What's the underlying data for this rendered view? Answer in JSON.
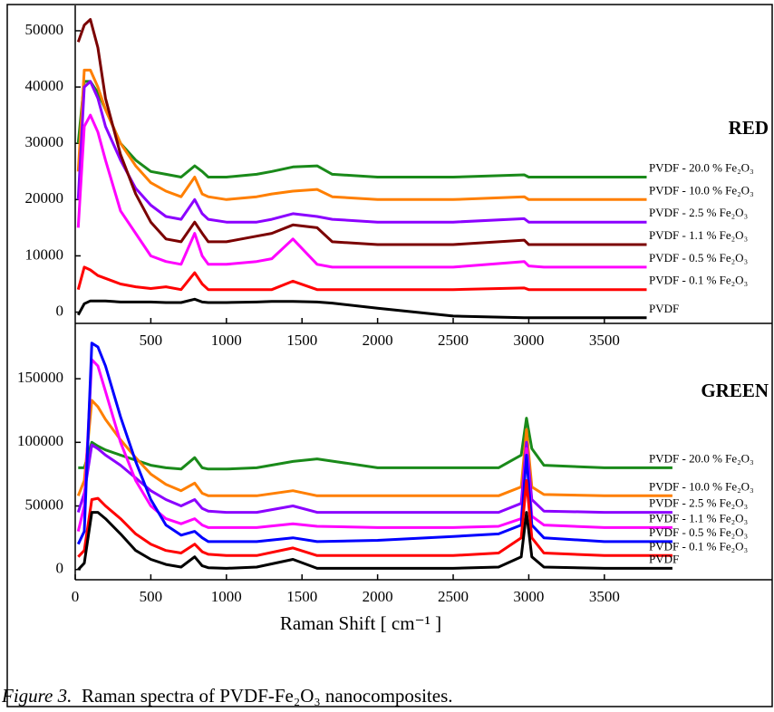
{
  "chart_data": [
    {
      "type": "line",
      "title": "RED",
      "title_color": "#ff0000",
      "x": [
        20,
        60,
        100,
        150,
        200,
        300,
        400,
        500,
        600,
        700,
        790,
        840,
        880,
        1000,
        1200,
        1300,
        1440,
        1600,
        1700,
        2000,
        2500,
        2970,
        3000,
        3100,
        3500,
        3780
      ],
      "xlim": [
        0,
        4610
      ],
      "xticks": [
        500,
        1000,
        1500,
        2000,
        2500,
        3000,
        3500
      ],
      "ylim": [
        -2000,
        54500
      ],
      "yticks": [
        0,
        10000,
        20000,
        30000,
        40000,
        50000
      ],
      "series": [
        {
          "name": "PVDF - 20.0 % Fe₂O₃",
          "color": "#1a8a1a",
          "values": [
            30000,
            41000,
            41000,
            39000,
            36000,
            30000,
            27000,
            25000,
            24500,
            24000,
            26000,
            25000,
            24000,
            24000,
            24500,
            25000,
            25800,
            26000,
            24500,
            24000,
            24000,
            24400,
            24000,
            24000,
            24000,
            24000
          ]
        },
        {
          "name": "PVDF - 10.0 % Fe₂O₃",
          "color": "#ff7f00",
          "values": [
            25000,
            43000,
            43000,
            40000,
            36000,
            30000,
            26000,
            23000,
            21500,
            20500,
            24000,
            21000,
            20500,
            20000,
            20500,
            21000,
            21500,
            21800,
            20500,
            20000,
            20000,
            20500,
            20000,
            20000,
            20000,
            20000
          ]
        },
        {
          "name": "PVDF - 2.5 % Fe₂O₃",
          "color": "#8b00ff",
          "values": [
            20000,
            40000,
            41000,
            38000,
            33000,
            27000,
            22000,
            19000,
            17000,
            16500,
            20000,
            17500,
            16500,
            16000,
            16000,
            16500,
            17500,
            17000,
            16500,
            16000,
            16000,
            16600,
            16000,
            16000,
            16000,
            16000
          ]
        },
        {
          "name": "PVDF - 1.1 % Fe₂O₃",
          "color": "#7b0000",
          "values": [
            48000,
            51000,
            52000,
            47000,
            38000,
            28000,
            21000,
            16000,
            13000,
            12500,
            16000,
            14000,
            12500,
            12500,
            13500,
            14000,
            15500,
            15000,
            12500,
            12000,
            12000,
            12800,
            12000,
            12000,
            12000,
            12000
          ]
        },
        {
          "name": "PVDF - 0.5 % Fe₂O₃",
          "color": "#ff00ff",
          "values": [
            15000,
            33000,
            35000,
            32000,
            27000,
            18000,
            14000,
            10000,
            9000,
            8500,
            14000,
            10000,
            8500,
            8500,
            9000,
            9500,
            13000,
            8500,
            8000,
            8000,
            8000,
            9000,
            8200,
            8000,
            8000,
            8000
          ]
        },
        {
          "name": "PVDF - 0.1 % Fe₂O₃",
          "color": "#ff0000",
          "values": [
            4000,
            8000,
            7500,
            6500,
            6000,
            5000,
            4500,
            4200,
            4500,
            4000,
            7000,
            5000,
            4000,
            4000,
            4000,
            4000,
            5500,
            4000,
            4000,
            4000,
            4000,
            4300,
            4000,
            4000,
            4000,
            4000
          ]
        },
        {
          "name": "PVDF",
          "color": "#000000",
          "values": [
            -500,
            1500,
            2000,
            2000,
            2000,
            1800,
            1800,
            1800,
            1700,
            1700,
            2300,
            1800,
            1700,
            1700,
            1800,
            1900,
            1900,
            1800,
            1600,
            700,
            -700,
            -1000,
            -1000,
            -1000,
            -1000,
            -1000
          ]
        }
      ]
    },
    {
      "type": "line",
      "title": "GREEN",
      "title_color": "#008080",
      "xlabel": "Raman Shift [ cm⁻¹ ]",
      "x": [
        20,
        60,
        110,
        150,
        200,
        300,
        400,
        500,
        600,
        700,
        790,
        840,
        880,
        1000,
        1200,
        1440,
        1600,
        2000,
        2500,
        2800,
        2950,
        2985,
        3020,
        3100,
        3500,
        3950
      ],
      "xlim": [
        0,
        4610
      ],
      "xticks": [
        0,
        500,
        1000,
        1500,
        2000,
        2500,
        3000,
        3500
      ],
      "ylim": [
        -8000,
        193500
      ],
      "yticks": [
        0,
        50000,
        100000,
        150000
      ],
      "series": [
        {
          "name": "PVDF - 20.0 % Fe₂O₃",
          "color": "#1a8a1a",
          "values": [
            80000,
            80000,
            100000,
            97000,
            94000,
            90000,
            86000,
            82000,
            80000,
            79000,
            88000,
            80000,
            79000,
            79000,
            80000,
            85000,
            87000,
            80000,
            80000,
            80000,
            90000,
            119000,
            95000,
            82000,
            80000,
            80000
          ]
        },
        {
          "name": "PVDF - 10.0 % Fe₂O₃",
          "color": "#ff7f00",
          "values": [
            58000,
            70000,
            133000,
            128000,
            118000,
            102000,
            88000,
            75000,
            67000,
            62000,
            68000,
            60000,
            58000,
            58000,
            58000,
            62000,
            58000,
            58000,
            58000,
            58000,
            65000,
            110000,
            65000,
            59000,
            58000,
            58000
          ]
        },
        {
          "name": "PVDF - 2.5 % Fe₂O₃",
          "color": "#8b00ff",
          "values": [
            45000,
            60000,
            98000,
            95000,
            90000,
            82000,
            72000,
            62000,
            55000,
            50000,
            55000,
            48000,
            46000,
            45000,
            45000,
            50000,
            45000,
            45000,
            45000,
            45000,
            52000,
            100000,
            55000,
            46000,
            45000,
            45000
          ]
        },
        {
          "name": "PVDF - 1.1 % Fe₂O₃",
          "color": "#ff00ff",
          "values": [
            30000,
            50000,
            165000,
            160000,
            140000,
            100000,
            70000,
            50000,
            40000,
            36000,
            40000,
            35000,
            33000,
            33000,
            33000,
            36000,
            34000,
            33000,
            33000,
            34000,
            40000,
            95000,
            42000,
            35000,
            33000,
            33000
          ]
        },
        {
          "name": "PVDF - 0.5 % Fe₂O₃",
          "color": "#0000ff",
          "values": [
            20000,
            30000,
            178000,
            175000,
            160000,
            120000,
            85000,
            55000,
            35000,
            27000,
            30000,
            25000,
            22000,
            22000,
            22000,
            25000,
            22000,
            23000,
            26000,
            28000,
            35000,
            90000,
            35000,
            25000,
            22000,
            22000
          ]
        },
        {
          "name": "PVDF - 0.1 % Fe₂O₃",
          "color": "#ff0000",
          "values": [
            10000,
            15000,
            55000,
            56000,
            50000,
            40000,
            28000,
            20000,
            15000,
            13000,
            20000,
            14000,
            12000,
            11000,
            11000,
            17000,
            11000,
            11000,
            11000,
            13000,
            25000,
            70000,
            25000,
            13000,
            11000,
            11000
          ]
        },
        {
          "name": "PVDF",
          "color": "#000000",
          "values": [
            0,
            5000,
            45000,
            45000,
            40000,
            28000,
            15000,
            8000,
            4000,
            2000,
            10000,
            3000,
            1500,
            1000,
            2000,
            8000,
            1000,
            1000,
            1000,
            2000,
            10000,
            45000,
            10000,
            2000,
            1000,
            1000
          ]
        }
      ]
    }
  ],
  "caption": {
    "label": "Figure 3.",
    "text": "Raman spectra of PVDF-Fe₂O₃ nanocomposites."
  }
}
